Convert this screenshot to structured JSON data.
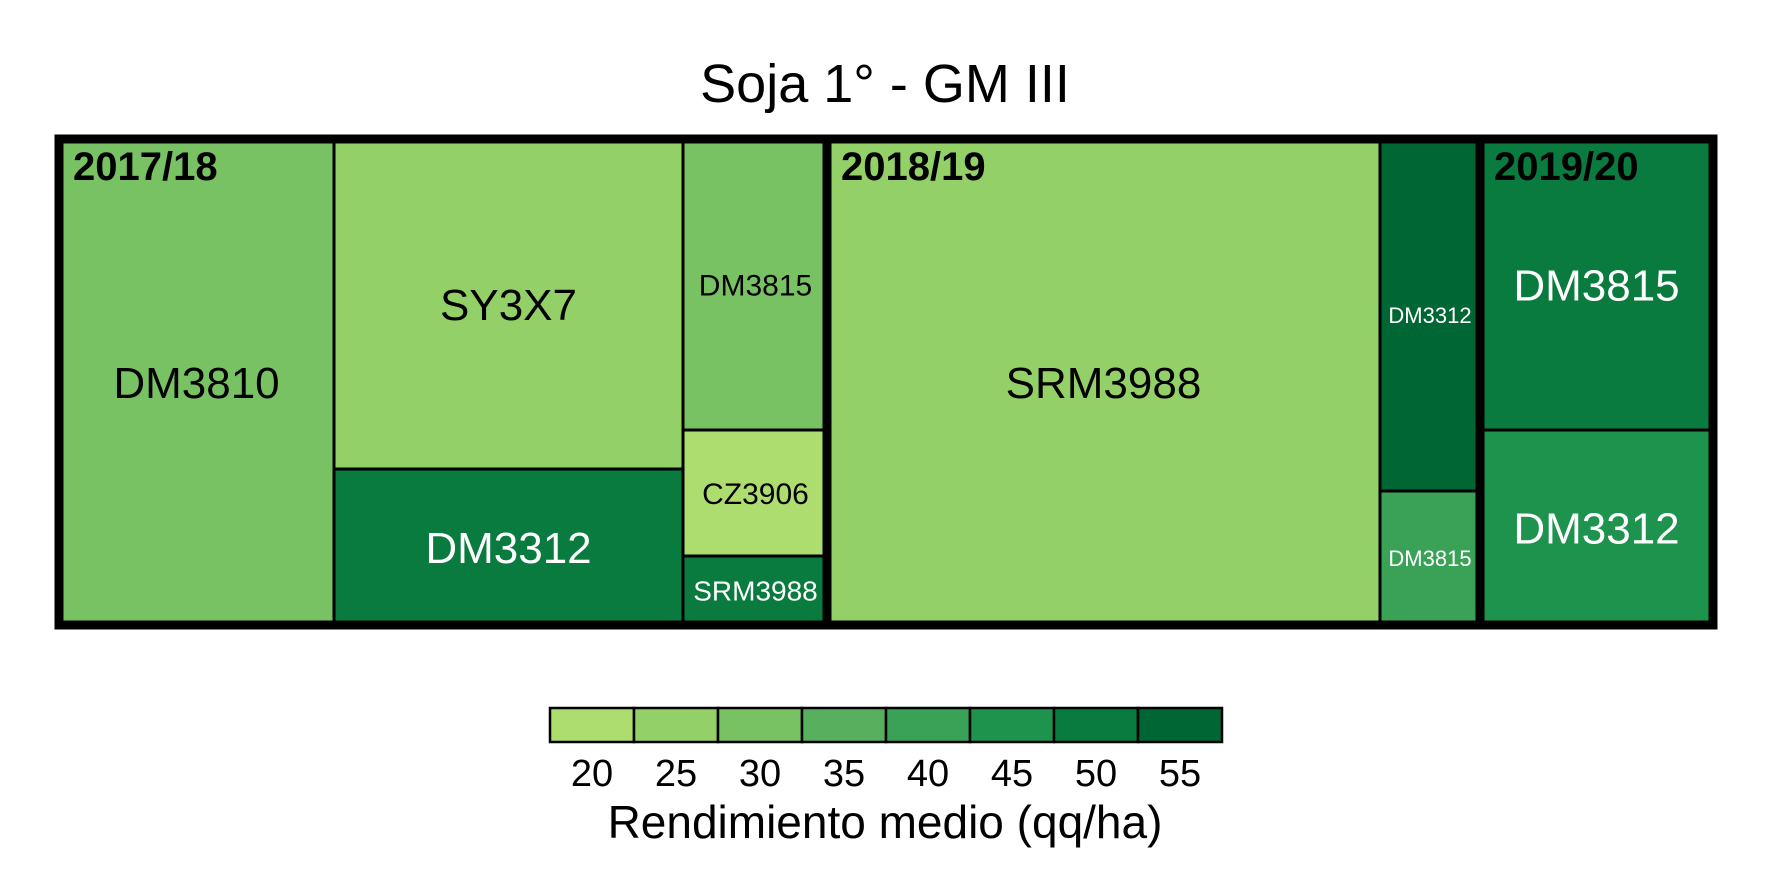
{
  "chart_data": {
    "type": "treemap",
    "title": "Soja 1° - GM III",
    "groups": [
      {
        "label": "2017/18",
        "items": [
          {
            "name": "DM3810",
            "value": 31
          },
          {
            "name": "SY3X7",
            "value": 27
          },
          {
            "name": "DM3312",
            "value": 50
          },
          {
            "name": "DM3815",
            "value": 31
          },
          {
            "name": "CZ3906",
            "value": 21
          },
          {
            "name": "SRM3988",
            "value": 51
          }
        ]
      },
      {
        "label": "2018/19",
        "items": [
          {
            "name": "SRM3988",
            "value": 26
          },
          {
            "name": "DM3312",
            "value": 56
          },
          {
            "name": "DM3815",
            "value": 41
          }
        ]
      },
      {
        "label": "2019/20",
        "items": [
          {
            "name": "DM3815",
            "value": 51
          },
          {
            "name": "DM3312",
            "value": 46
          }
        ]
      }
    ],
    "legend": {
      "title": "Rendimiento medio (qq/ha)",
      "ticks": [
        "20",
        "25",
        "30",
        "35",
        "40",
        "45",
        "50",
        "55"
      ],
      "colors": [
        "#addd6e",
        "#93d068",
        "#78c263",
        "#58b05e",
        "#39a257",
        "#1d934e",
        "#0a7b3e",
        "#006633"
      ]
    }
  }
}
